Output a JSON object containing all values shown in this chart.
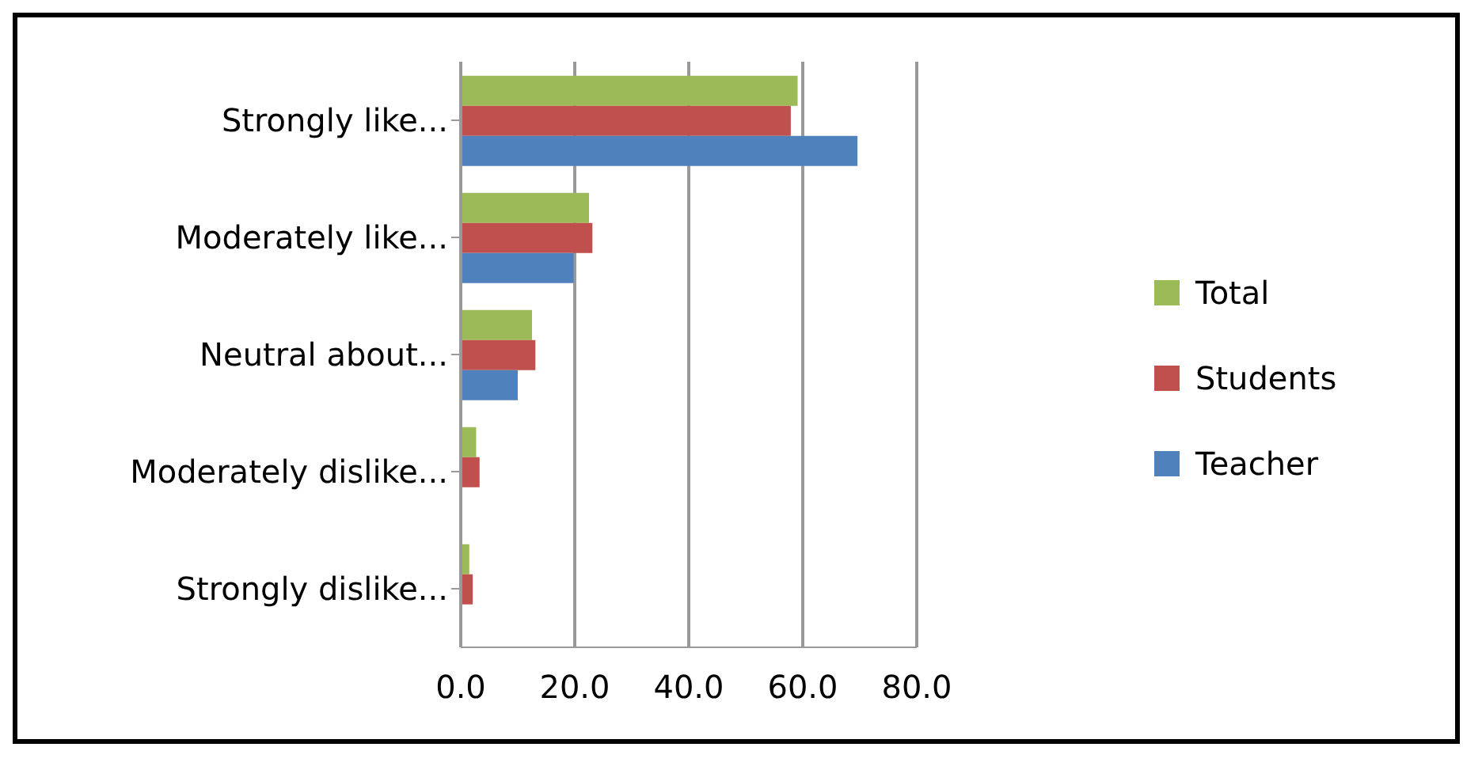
{
  "chart_data": {
    "type": "bar",
    "orientation": "horizontal",
    "categories": [
      "Strongly like...",
      "Moderately like...",
      "Neutral about...",
      "Moderately dislike...",
      "Strongly dislike..."
    ],
    "series": [
      {
        "name": "Total",
        "color": "#9bbb59",
        "values": [
          59.1,
          22.5,
          12.5,
          2.7,
          1.5
        ]
      },
      {
        "name": "Students",
        "color": "#c0504d",
        "values": [
          57.9,
          23.1,
          13.1,
          3.3,
          2.1
        ]
      },
      {
        "name": "Teacher",
        "color": "#4f81bd",
        "values": [
          69.6,
          19.8,
          10.0,
          0,
          0
        ]
      }
    ],
    "xlim": [
      0,
      80
    ],
    "xticks": [
      {
        "value": 0,
        "label": "0.0"
      },
      {
        "value": 20,
        "label": "20.0"
      },
      {
        "value": 40,
        "label": "40.0"
      },
      {
        "value": 60,
        "label": "60.0"
      },
      {
        "value": 80,
        "label": "80.0"
      }
    ],
    "grid": "x",
    "legend": "right"
  }
}
